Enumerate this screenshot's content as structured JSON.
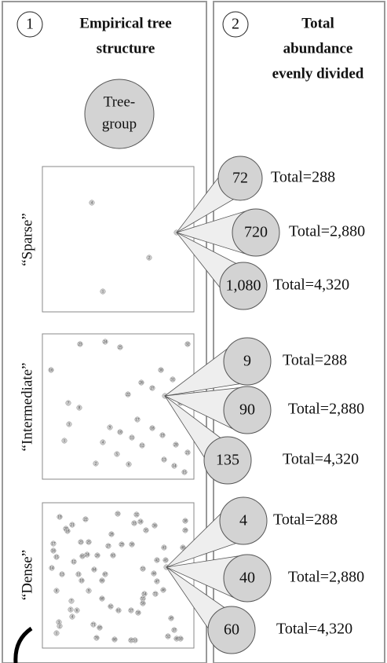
{
  "header": {
    "panel1": {
      "number": "1",
      "title": [
        "Empirical tree",
        "structure"
      ]
    },
    "panel2": {
      "number": "2",
      "title": [
        "Total",
        "abundance",
        "evenly divided"
      ]
    }
  },
  "legend": {
    "label": [
      "Tree-",
      "group"
    ]
  },
  "rows": [
    {
      "label": "“Sparse”",
      "trees": [
        "4",
        "2",
        "1"
      ],
      "groups": [
        {
          "abundance": "72",
          "total": "Total=288"
        },
        {
          "abundance": "720",
          "total": "Total=2,880"
        },
        {
          "abundance": "1,080",
          "total": "Total=4,320"
        }
      ]
    },
    {
      "label": "“Intermediate”",
      "trees": [
        "23",
        "24",
        "25",
        "32",
        "16",
        "30",
        "31",
        "26",
        "27",
        "22",
        "29",
        "7",
        "8",
        "17",
        "18",
        "3",
        "9",
        "10",
        "11",
        "19",
        "1",
        "4",
        "12",
        "20",
        "5",
        "21",
        "13",
        "2",
        "6",
        "14",
        "15"
      ],
      "groups": [
        {
          "abundance": "9",
          "total": "Total=288"
        },
        {
          "abundance": "90",
          "total": "Total=2,880"
        },
        {
          "abundance": "135",
          "total": "Total=4,320"
        }
      ]
    },
    {
      "label": "“Dense”",
      "trees": [
        "19",
        "20",
        "21",
        "22",
        "31",
        "32",
        "33",
        "34",
        "35",
        "36",
        "38",
        "39",
        "17",
        "16",
        "15",
        "18",
        "23",
        "25",
        "24",
        "26",
        "27",
        "28",
        "29",
        "30",
        "63",
        "12",
        "65",
        "41",
        "40",
        "42",
        "43",
        "14",
        "13",
        "11",
        "10",
        "67",
        "66",
        "53",
        "8",
        "9",
        "68",
        "7",
        "62",
        "61",
        "57",
        "56",
        "55",
        "54",
        "72",
        "46",
        "58",
        "5",
        "6",
        "4",
        "3",
        "2",
        "71",
        "69",
        "49",
        "1",
        "70",
        "60",
        "59",
        "51",
        "37",
        "52",
        "50",
        "48",
        "44",
        "47",
        "64"
      ],
      "groups": [
        {
          "abundance": "4",
          "total": "Total=288"
        },
        {
          "abundance": "40",
          "total": "Total=2,880"
        },
        {
          "abundance": "60",
          "total": "Total=4,320"
        }
      ]
    }
  ]
}
